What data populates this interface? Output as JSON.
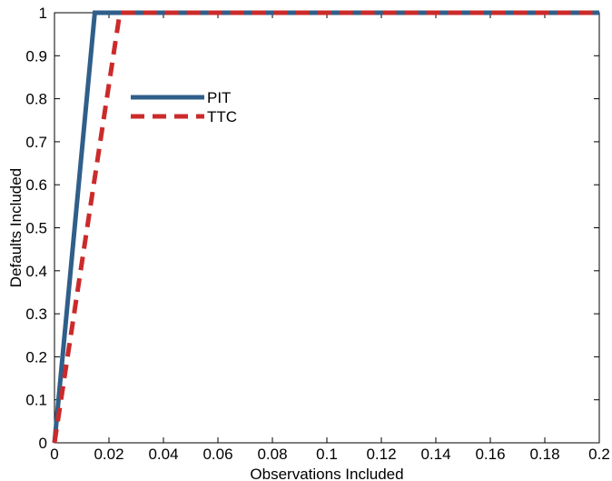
{
  "chart_data": {
    "type": "line",
    "title": "",
    "xlabel": "Observations Included",
    "ylabel": "Defaults Included",
    "xlim": [
      0,
      0.2
    ],
    "ylim": [
      0,
      1
    ],
    "grid": false,
    "legend_position": "top-left",
    "x_ticks": [
      0,
      0.02,
      0.04,
      0.06,
      0.08,
      0.1,
      0.12,
      0.14,
      0.16,
      0.18,
      0.2
    ],
    "x_tick_labels": [
      "0",
      "0.02",
      "0.04",
      "0.06",
      "0.08",
      "0.1",
      "0.12",
      "0.14",
      "0.16",
      "0.18",
      "0.2"
    ],
    "y_ticks": [
      0,
      0.1,
      0.2,
      0.3,
      0.4,
      0.5,
      0.6,
      0.7,
      0.8,
      0.9,
      1
    ],
    "y_tick_labels": [
      "0",
      "0.1",
      "0.2",
      "0.3",
      "0.4",
      "0.5",
      "0.6",
      "0.7",
      "0.8",
      "0.9",
      "1"
    ],
    "series": [
      {
        "name": "PIT",
        "color": "#2f5f8a",
        "dash": "solid",
        "points": [
          [
            0,
            0
          ],
          [
            0.0148,
            1
          ],
          [
            0.2,
            1
          ]
        ]
      },
      {
        "name": "TTC",
        "color": "#cc2a2a",
        "dash": "dashed",
        "points": [
          [
            0,
            0
          ],
          [
            0.024,
            1
          ],
          [
            0.2,
            1
          ]
        ]
      }
    ]
  }
}
